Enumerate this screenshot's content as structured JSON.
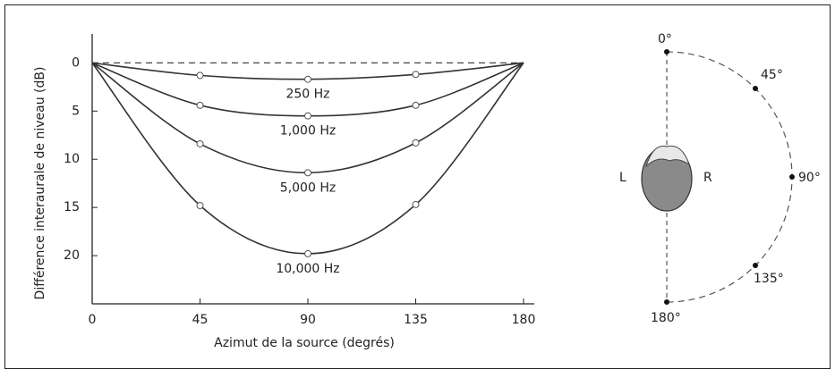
{
  "chart_data": {
    "type": "line",
    "x_label": "Azimut de la source  (degrés)",
    "y_label": "Différence interaurale  de niveau (dB)",
    "x": [
      0,
      45,
      90,
      135,
      180
    ],
    "xlim": [
      0,
      180
    ],
    "xticks": [
      0,
      45,
      90,
      135,
      180
    ],
    "ylim": [
      25,
      -3
    ],
    "yticks": [
      0,
      5,
      10,
      15,
      20
    ],
    "color": "#333333",
    "series": [
      {
        "name": "250 Hz",
        "color": "#333333",
        "values": [
          0,
          1.3,
          1.7,
          1.2,
          0
        ]
      },
      {
        "name": "1,000 Hz",
        "color": "#333333",
        "values": [
          0,
          4.4,
          5.5,
          4.4,
          0
        ]
      },
      {
        "name": "5,000 Hz",
        "color": "#333333",
        "values": [
          0,
          8.4,
          11.4,
          8.3,
          0
        ]
      },
      {
        "name": "10,000 Hz",
        "color": "#333333",
        "values": [
          0,
          14.8,
          19.8,
          14.7,
          0
        ]
      }
    ]
  },
  "diagram": {
    "angles": [
      "0°",
      "45°",
      "90°",
      "135°",
      "180°"
    ],
    "left": "L",
    "right": "R"
  }
}
